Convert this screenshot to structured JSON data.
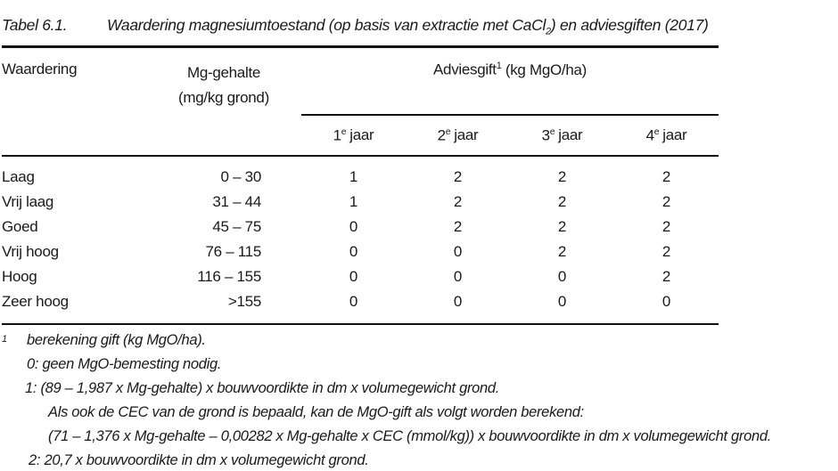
{
  "document": {
    "title": {
      "label": "Tabel 6.1.",
      "caption_pre": "Waardering magnesiumtoestand (op basis van extractie met CaCl",
      "caption_sub": "2",
      "caption_post": ") en adviesgiften (2017)"
    },
    "table": {
      "columns": {
        "waardering": "Waardering",
        "mg_line1": "Mg-gehalte",
        "mg_line2": "(mg/kg grond)",
        "adviesgift": "Adviesgift",
        "adviesgift_sup": "1",
        "adviesgift_unit": "(kg MgO/ha)",
        "years": [
          {
            "num": "1",
            "sup": "e",
            "label": "jaar"
          },
          {
            "num": "2",
            "sup": "e",
            "label": "jaar"
          },
          {
            "num": "3",
            "sup": "e",
            "label": "jaar"
          },
          {
            "num": "4",
            "sup": "e",
            "label": "jaar"
          }
        ]
      },
      "rows": [
        {
          "waardering": "Laag",
          "mg": "0 – 30",
          "jaar": [
            "1",
            "2",
            "2",
            "2"
          ]
        },
        {
          "waardering": "Vrij laag",
          "mg": "31 – 44",
          "jaar": [
            "1",
            "2",
            "2",
            "2"
          ]
        },
        {
          "waardering": "Goed",
          "mg": "45 – 75",
          "jaar": [
            "0",
            "2",
            "2",
            "2"
          ]
        },
        {
          "waardering": "Vrij hoog",
          "mg": "76 – 115",
          "jaar": [
            "0",
            "0",
            "2",
            "2"
          ]
        },
        {
          "waardering": "Hoog",
          "mg": "116 – 155",
          "jaar": [
            "0",
            "0",
            "0",
            "2"
          ]
        },
        {
          "waardering": "Zeer hoog",
          "mg": ">155",
          "jaar": [
            "0",
            "0",
            "0",
            "0"
          ]
        }
      ]
    },
    "footnotes": {
      "marker": "1",
      "lines": [
        "berekening gift (kg MgO/ha).",
        "0: geen MgO-bemesting nodig.",
        "1:  (89 – 1,987 x Mg-gehalte) x bouwvoordikte in dm x volumegewicht grond.",
        "Als ook de CEC van de grond is bepaald, kan de MgO-gift als volgt worden berekend:",
        "(71 – 1,376 x Mg-gehalte – 0,00282 x Mg-gehalte x CEC (mmol/kg)) x bouwvoordikte in dm x volumegewicht grond.",
        "2: 20,7 x bouwvoordikte in dm x volumegewicht grond."
      ]
    },
    "colors": {
      "text": "#1a1a1a",
      "rule": "#111111",
      "background": "#ffffff"
    }
  }
}
